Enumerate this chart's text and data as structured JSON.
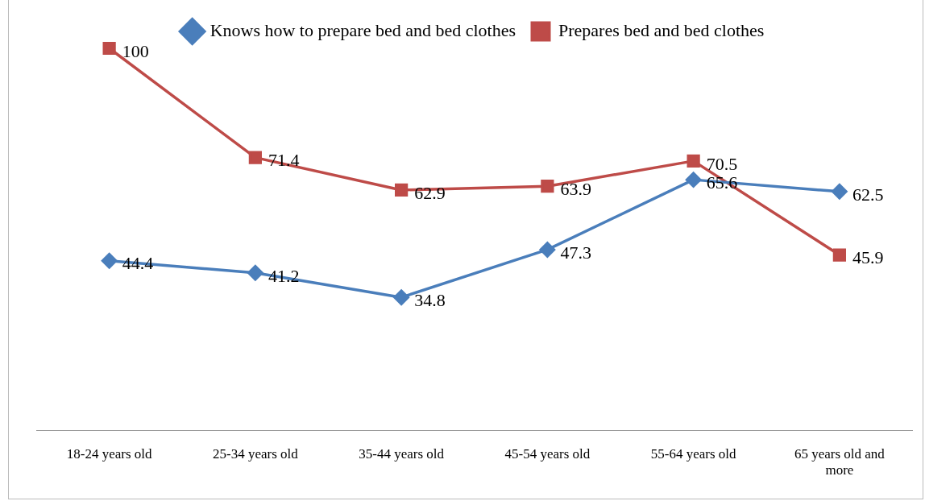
{
  "chart_data": {
    "type": "line",
    "categories": [
      "18-24 years old",
      "25-34 years old",
      "35-44 years old",
      "45-54 years old",
      "55-64 years old",
      "65 years old and more"
    ],
    "series": [
      {
        "name": "Knows how to prepare bed and bed clothes",
        "color": "#4a7ebb",
        "marker": "diamond",
        "values": [
          44.4,
          41.2,
          34.8,
          47.3,
          65.6,
          62.5
        ]
      },
      {
        "name": "Prepares bed and bed clothes",
        "color": "#be4b48",
        "marker": "square",
        "values": [
          100,
          71.4,
          62.9,
          63.9,
          70.5,
          45.9
        ]
      }
    ],
    "tick_labels": "x",
    "grid": false,
    "legend": "top",
    "data_labels": true,
    "line_style": "solid"
  }
}
